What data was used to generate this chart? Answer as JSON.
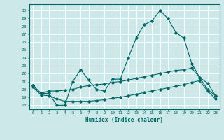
{
  "title": "",
  "xlabel": "Humidex (Indice chaleur)",
  "background_color": "#cce8e8",
  "grid_color": "#ffffff",
  "line_color": "#006666",
  "xlim": [
    -0.5,
    23.5
  ],
  "ylim": [
    17.5,
    30.8
  ],
  "yticks": [
    18,
    19,
    20,
    21,
    22,
    23,
    24,
    25,
    26,
    27,
    28,
    29,
    30
  ],
  "xticks": [
    0,
    1,
    2,
    3,
    4,
    5,
    6,
    7,
    8,
    9,
    10,
    11,
    12,
    13,
    14,
    15,
    16,
    17,
    18,
    19,
    20,
    21,
    22,
    23
  ],
  "xtick_labels": [
    "0",
    "1",
    "2",
    "3",
    "4",
    "5",
    "6",
    "7",
    "8",
    "9",
    "10",
    "11",
    "12",
    "13",
    "14",
    "15",
    "16",
    "17",
    "18",
    "19",
    "20",
    "21",
    "22",
    "23"
  ],
  "series1": [
    20.5,
    19.5,
    19.5,
    18.0,
    18.0,
    21.0,
    22.5,
    21.2,
    20.0,
    19.8,
    21.3,
    21.3,
    24.0,
    26.5,
    28.2,
    28.7,
    30.0,
    29.0,
    27.2,
    26.5,
    23.3,
    21.5,
    20.8,
    19.2
  ],
  "series2": [
    20.5,
    19.5,
    19.8,
    19.8,
    19.9,
    20.0,
    20.3,
    20.5,
    20.6,
    20.7,
    20.9,
    21.0,
    21.2,
    21.4,
    21.6,
    21.8,
    22.0,
    22.2,
    22.4,
    22.5,
    22.7,
    21.5,
    20.0,
    19.2
  ],
  "series3": [
    20.3,
    19.3,
    19.2,
    18.8,
    18.5,
    18.5,
    18.5,
    18.5,
    18.6,
    18.7,
    18.9,
    19.0,
    19.2,
    19.4,
    19.6,
    19.8,
    20.0,
    20.2,
    20.4,
    20.6,
    20.9,
    21.1,
    19.8,
    18.8
  ]
}
